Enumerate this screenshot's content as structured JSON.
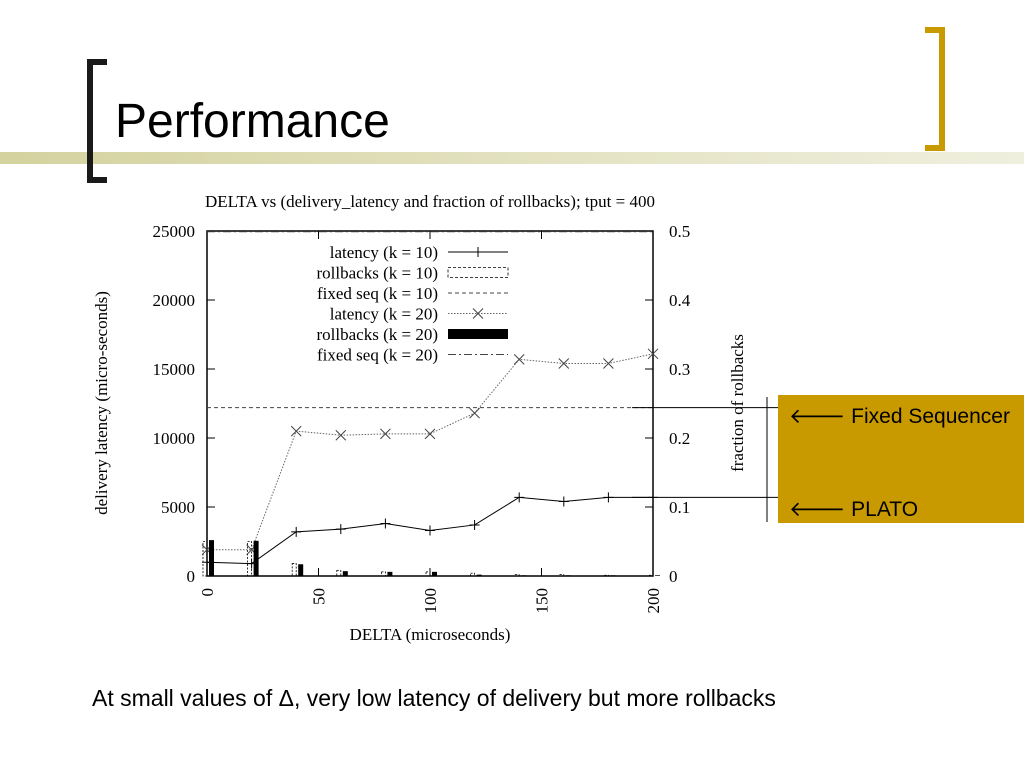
{
  "slide": {
    "title": "Performance",
    "caption": "At small values of Δ, very low latency of delivery but more rollbacks",
    "callouts": [
      {
        "arrow": "🡐",
        "label": "Fixed Sequencer"
      },
      {
        "arrow": "🡐",
        "label": "PLATO"
      }
    ],
    "colors": {
      "accent": "#c99a00",
      "band": "#d4d29e",
      "bracket_left": "#1a1a1a"
    }
  },
  "chart_data": {
    "type": "line",
    "title": "DELTA vs (delivery_latency and fraction of rollbacks); tput = 400",
    "xlabel": "DELTA (microseconds)",
    "ylabel": "delivery latency (micro-seconds)",
    "y2label": "fraction of rollbacks",
    "xlim": [
      0,
      200
    ],
    "ylim": [
      0,
      25000
    ],
    "y2lim": [
      0,
      0.5
    ],
    "xticks": [
      "0",
      "50",
      "100",
      "150",
      "200"
    ],
    "yticks": [
      "0",
      "5000",
      "10000",
      "15000",
      "20000",
      "25000"
    ],
    "y2ticks": [
      "0",
      "0.1",
      "0.2",
      "0.3",
      "0.4",
      "0.5"
    ],
    "legend_position": "top-left",
    "series": [
      {
        "name": "latency (k = 10)",
        "kind": "line",
        "marker": "+",
        "x": [
          0,
          20,
          40,
          60,
          80,
          100,
          120,
          140,
          160,
          180,
          200
        ],
        "y": [
          1000,
          900,
          3200,
          3400,
          3800,
          3300,
          3700,
          5700,
          5400,
          5700,
          5700
        ]
      },
      {
        "name": "rollbacks (k = 10)",
        "kind": "bar-outline",
        "axis": "y2",
        "x": [
          0,
          20,
          40,
          60,
          80,
          100,
          120,
          140,
          160,
          180,
          200
        ],
        "y": [
          0.05,
          0.05,
          0.018,
          0.008,
          0.006,
          0.006,
          0.004,
          0.002,
          0.002,
          0.001,
          0.001
        ]
      },
      {
        "name": "fixed seq (k = 10)",
        "kind": "hline",
        "y": 12200
      },
      {
        "name": "latency (k = 20)",
        "kind": "line",
        "marker": "x",
        "x": [
          0,
          20,
          40,
          60,
          80,
          100,
          120,
          140,
          160,
          180,
          200
        ],
        "y": [
          1900,
          1900,
          10500,
          10200,
          10300,
          10300,
          11800,
          15700,
          15400,
          15400,
          16100
        ]
      },
      {
        "name": "rollbacks (k = 20)",
        "kind": "bar-solid",
        "axis": "y2",
        "x": [
          0,
          20,
          40,
          60,
          80,
          100,
          120,
          140,
          160,
          180,
          200
        ],
        "y": [
          0.052,
          0.051,
          0.017,
          0.007,
          0.006,
          0.006,
          0.002,
          0.001,
          0.001,
          0.001,
          0.001
        ]
      },
      {
        "name": "fixed seq (k = 20)",
        "kind": "hline",
        "y": 24950
      }
    ]
  }
}
